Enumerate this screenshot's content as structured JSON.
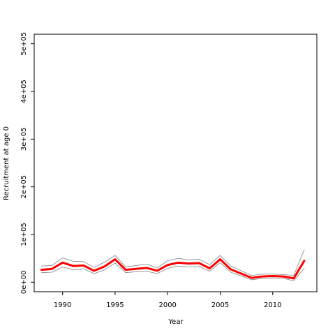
{
  "chart_data": {
    "type": "line",
    "xlabel": "Year",
    "ylabel": "Recruitment at age 0",
    "xlim": [
      1987.3,
      2014.2
    ],
    "ylim": [
      -20000,
      520000
    ],
    "x_ticks": [
      1990,
      1995,
      2000,
      2005,
      2010
    ],
    "x_tick_labels": [
      "1990",
      "1995",
      "2000",
      "2005",
      "2010"
    ],
    "y_ticks": [
      0,
      100000,
      200000,
      300000,
      400000,
      500000
    ],
    "y_tick_labels": [
      "0e+00",
      "1e+05",
      "2e+05",
      "3e+05",
      "4e+05",
      "5e+05"
    ],
    "grid": false,
    "x": [
      1988,
      1989,
      1990,
      1991,
      1992,
      1993,
      1994,
      1995,
      1996,
      1997,
      1998,
      1999,
      2000,
      2001,
      2002,
      2003,
      2004,
      2005,
      2006,
      2007,
      2008,
      2009,
      2010,
      2011,
      2012,
      2013
    ],
    "series": [
      {
        "color": "#ff0000",
        "values": [
          26000,
          28000,
          41000,
          34000,
          35000,
          24000,
          33000,
          48000,
          26000,
          28000,
          30000,
          24000,
          36000,
          41000,
          39000,
          40000,
          29000,
          48000,
          27000,
          18000,
          9000,
          12000,
          13000,
          12000,
          8000,
          45000
        ]
      },
      {
        "color": "#808080",
        "values": [
          34000,
          35000,
          51000,
          44000,
          43000,
          31000,
          42000,
          56000,
          32000,
          35000,
          38000,
          30000,
          45000,
          50000,
          47000,
          48000,
          37000,
          56000,
          34000,
          24000,
          14000,
          17000,
          17000,
          16000,
          14000,
          68000
        ]
      },
      {
        "color": "#808080",
        "values": [
          20000,
          21000,
          32000,
          26000,
          28000,
          18000,
          26000,
          40000,
          20000,
          22000,
          23000,
          18000,
          29000,
          34000,
          32000,
          33000,
          23000,
          41000,
          21000,
          13000,
          5000,
          8000,
          9000,
          8000,
          3000,
          29000
        ]
      }
    ]
  }
}
